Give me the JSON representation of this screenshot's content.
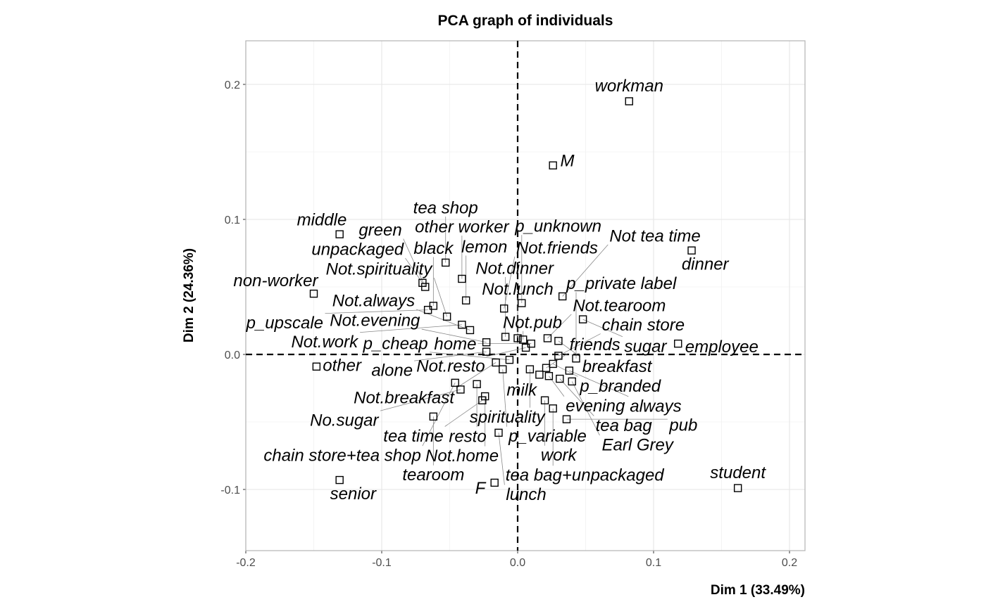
{
  "chart_data": {
    "type": "scatter",
    "title": "PCA graph of individuals",
    "xlabel": "Dim 1 (33.49%)",
    "ylabel": "Dim 2 (24.36%)",
    "xlim": [
      -0.2,
      0.21
    ],
    "ylim": [
      -0.145,
      0.232
    ],
    "xticks": [
      -0.2,
      -0.1,
      0.0,
      0.1,
      0.2
    ],
    "xtick_labels": [
      "-0.2",
      "-0.1",
      "0.0",
      "0.1",
      "0.2"
    ],
    "yticks": [
      0.2,
      0.1,
      0.0,
      -0.1
    ],
    "ytick_labels": [
      "0.2",
      "0.1",
      "0.0",
      "-0.1"
    ],
    "grid": true,
    "reference_lines": {
      "x": 0,
      "y": 0
    },
    "points": [
      {
        "label": "workman",
        "x": 0.082,
        "y": 0.1875
      },
      {
        "label": "M",
        "x": 0.026,
        "y": 0.14
      },
      {
        "label": "middle",
        "x": -0.131,
        "y": 0.089
      },
      {
        "label": "dinner",
        "x": 0.128,
        "y": 0.077
      },
      {
        "label": "tea shop",
        "x": -0.053,
        "y": 0.068
      },
      {
        "label": "other worker",
        "x": -0.041,
        "y": 0.056
      },
      {
        "label": "non-worker",
        "x": -0.15,
        "y": 0.045
      },
      {
        "label": "unpackaged",
        "x": -0.07,
        "y": 0.053
      },
      {
        "label": "green",
        "x": -0.068,
        "y": 0.05
      },
      {
        "label": "black",
        "x": -0.062,
        "y": 0.036
      },
      {
        "label": "lemon",
        "x": -0.038,
        "y": 0.04
      },
      {
        "label": "p_upscale",
        "x": -0.066,
        "y": 0.033
      },
      {
        "label": "Not.spirituality",
        "x": -0.052,
        "y": 0.028
      },
      {
        "label": "Not.friends",
        "x": -0.01,
        "y": 0.034
      },
      {
        "label": "Not.work",
        "x": -0.041,
        "y": 0.022
      },
      {
        "label": "Not.always",
        "x": -0.035,
        "y": 0.018
      },
      {
        "label": "Not.dinner",
        "x": -0.009,
        "y": 0.013
      },
      {
        "label": "p_unknown",
        "x": 0.003,
        "y": 0.038
      },
      {
        "label": "Not tea time",
        "x": 0.033,
        "y": 0.043
      },
      {
        "label": "sugar",
        "x": 0.048,
        "y": 0.026
      },
      {
        "label": "Not.tearoom",
        "x": 0.022,
        "y": 0.012
      },
      {
        "label": "Not.lunch",
        "x": 0.0,
        "y": 0.012
      },
      {
        "label": "Not.pub",
        "x": 0.004,
        "y": 0.011
      },
      {
        "label": "breakfast",
        "x": 0.03,
        "y": 0.01
      },
      {
        "label": "home",
        "x": 0.01,
        "y": 0.008
      },
      {
        "label": "employee",
        "x": 0.118,
        "y": 0.008
      },
      {
        "label": "Not.evening",
        "x": -0.023,
        "y": 0.009
      },
      {
        "label": "Not.resto",
        "x": 0.006,
        "y": 0.005
      },
      {
        "label": "alone",
        "x": -0.023,
        "y": 0.002
      },
      {
        "label": "other",
        "x": -0.148,
        "y": -0.009
      },
      {
        "label": "Not.breakfast",
        "x": -0.016,
        "y": -0.006
      },
      {
        "label": "p_cheap",
        "x": -0.006,
        "y": -0.004
      },
      {
        "label": "p_variable",
        "x": -0.011,
        "y": -0.011
      },
      {
        "label": "resto",
        "x": -0.03,
        "y": -0.022
      },
      {
        "label": "chain store+tea shop",
        "x": -0.046,
        "y": -0.021
      },
      {
        "label": "No.sugar",
        "x": -0.042,
        "y": -0.026
      },
      {
        "label": "Not.home",
        "x": -0.024,
        "y": -0.031
      },
      {
        "label": "tea time",
        "x": -0.026,
        "y": -0.034
      },
      {
        "label": "tearoom",
        "x": -0.062,
        "y": -0.046
      },
      {
        "label": "lunch",
        "x": -0.014,
        "y": -0.058
      },
      {
        "label": "senior",
        "x": -0.131,
        "y": -0.093
      },
      {
        "label": "F",
        "x": -0.017,
        "y": -0.095
      },
      {
        "label": "student",
        "x": 0.162,
        "y": -0.099
      },
      {
        "label": "chain store",
        "x": 0.03,
        "y": -0.001
      },
      {
        "label": "p_private label",
        "x": 0.043,
        "y": -0.003
      },
      {
        "label": "p_branded",
        "x": 0.026,
        "y": -0.007
      },
      {
        "label": "friends",
        "x": 0.021,
        "y": -0.01
      },
      {
        "label": "milk",
        "x": 0.016,
        "y": -0.015
      },
      {
        "label": "spirituality",
        "x": 0.009,
        "y": -0.011
      },
      {
        "label": "tea bag",
        "x": 0.031,
        "y": -0.018
      },
      {
        "label": "Earl Grey",
        "x": 0.04,
        "y": -0.02
      },
      {
        "label": "always",
        "x": 0.038,
        "y": -0.012
      },
      {
        "label": "evening",
        "x": 0.023,
        "y": -0.016
      },
      {
        "label": "work",
        "x": 0.02,
        "y": -0.034
      },
      {
        "label": "tea bag+unpackaged",
        "x": 0.026,
        "y": -0.04
      },
      {
        "label": "pub",
        "x": 0.036,
        "y": -0.048
      }
    ]
  }
}
